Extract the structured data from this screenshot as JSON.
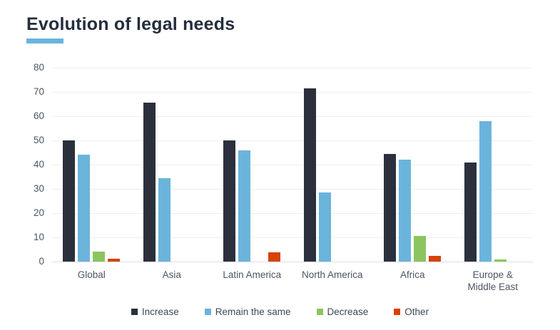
{
  "title": {
    "text": "Evolution of legal needs"
  },
  "accent_color": "#6ab4dc",
  "chart_data": {
    "type": "bar",
    "title": "Evolution of legal needs",
    "categories": [
      "Global",
      "Asia",
      "Latin America",
      "North America",
      "Africa",
      "Europe & Middle East"
    ],
    "series": [
      {
        "name": "Increase",
        "color": "#2b303c",
        "values": [
          50,
          65.5,
          50,
          71.5,
          44.5,
          41
        ]
      },
      {
        "name": "Remain the same",
        "color": "#6ab4dc",
        "values": [
          44,
          34.5,
          46,
          28.5,
          42,
          58
        ]
      },
      {
        "name": "Decrease",
        "color": "#8cc45e",
        "values": [
          4,
          0,
          0,
          0,
          10.5,
          1
        ]
      },
      {
        "name": "Other",
        "color": "#d6430a",
        "values": [
          1.2,
          0,
          3.7,
          0,
          2.5,
          0
        ]
      }
    ],
    "xlabel": "",
    "ylabel": "",
    "ylim": [
      0,
      80
    ],
    "yticks": [
      0,
      10,
      20,
      30,
      40,
      50,
      60,
      70,
      80
    ],
    "grid": true,
    "legend_position": "bottom"
  }
}
